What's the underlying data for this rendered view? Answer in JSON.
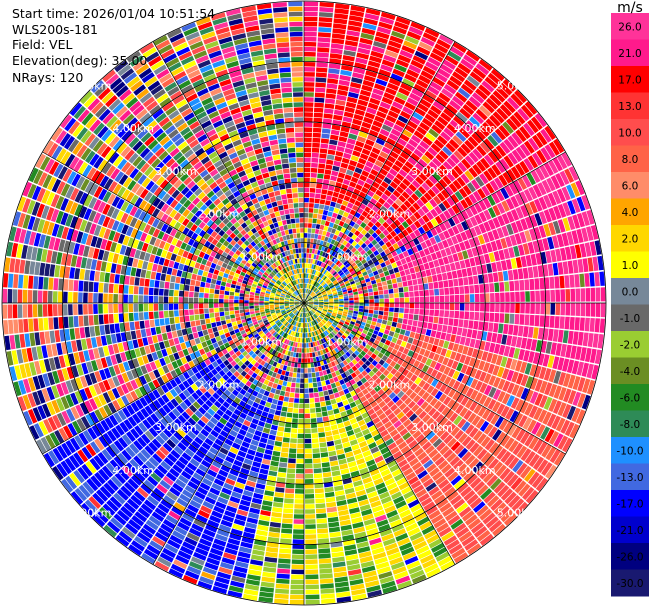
{
  "chart_data": {
    "type": "heatmap",
    "subtype": "ppi-radar",
    "header": {
      "start_time": "Start time: 2026/01/04 10:51:54",
      "instrument": "WLS200s-181",
      "field": "Field: VEL",
      "elevation": "Elevation(deg): 35.00",
      "nrays": "NRays: 120"
    },
    "n_rays": 120,
    "range_rings_km": [
      1.0,
      2.0,
      3.0,
      4.0,
      5.0
    ],
    "ring_labels": [
      "1.00km",
      "2.00km",
      "3.00km",
      "4.00km",
      "5.00km"
    ],
    "units": "m/s",
    "colorbar_ticks": [
      "26.0",
      "21.0",
      "17.0",
      "13.0",
      "10.0",
      "8.0",
      "6.0",
      "4.0",
      "2.0",
      "1.0",
      "0.0",
      "-1.0",
      "-2.0",
      "-4.0",
      "-6.0",
      "-8.0",
      "-10.0",
      "-13.0",
      "-17.0",
      "-21.0",
      "-26.0",
      "-30.0"
    ],
    "colorbar_colors": [
      "#ff3399",
      "#ff1a8c",
      "#ff0000",
      "#ff3333",
      "#ff4d4d",
      "#ff6347",
      "#ff8c69",
      "#ffa500",
      "#ffd700",
      "#ffff00",
      "#778899",
      "#696969",
      "#9acd32",
      "#6b8e23",
      "#228b22",
      "#2e8b57",
      "#1e90ff",
      "#4169e1",
      "#0000ff",
      "#0000cd",
      "#000080",
      "#191970"
    ],
    "max_range_km": 5.0
  }
}
